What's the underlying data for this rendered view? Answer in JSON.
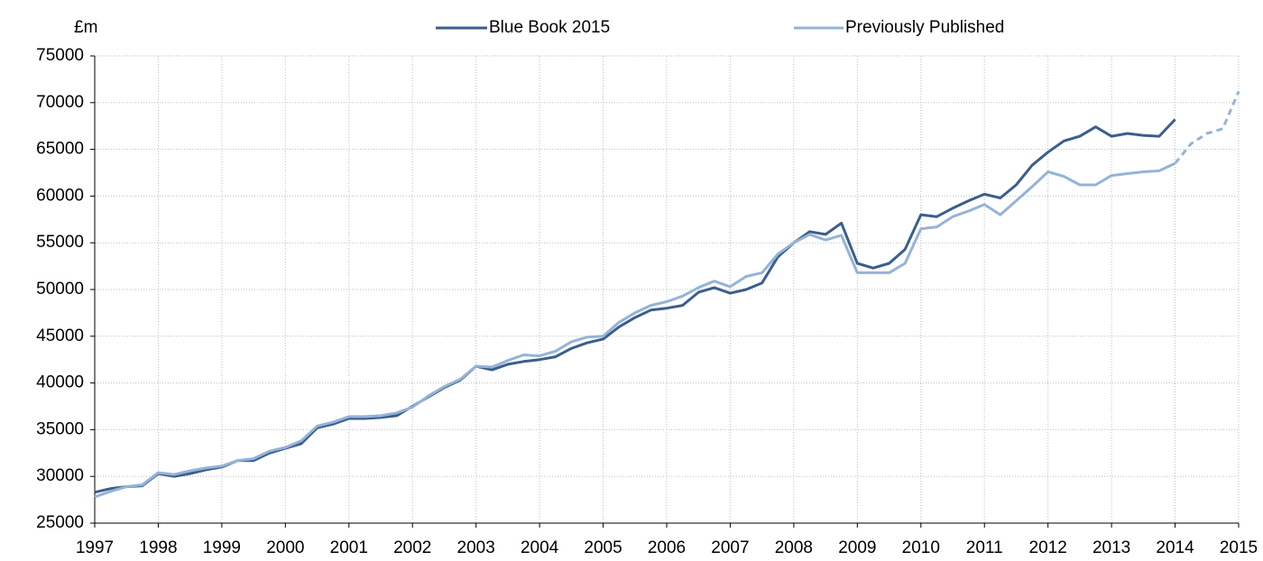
{
  "chart_data": {
    "type": "line",
    "y_unit_label": "£m",
    "x": [
      1997,
      1997.25,
      1997.5,
      1997.75,
      1998,
      1998.25,
      1998.5,
      1998.75,
      1999,
      1999.25,
      1999.5,
      1999.75,
      2000,
      2000.25,
      2000.5,
      2000.75,
      2001,
      2001.25,
      2001.5,
      2001.75,
      2002,
      2002.25,
      2002.5,
      2002.75,
      2003,
      2003.25,
      2003.5,
      2003.75,
      2004,
      2004.25,
      2004.5,
      2004.75,
      2005,
      2005.25,
      2005.5,
      2005.75,
      2006,
      2006.25,
      2006.5,
      2006.75,
      2007,
      2007.25,
      2007.5,
      2007.75,
      2008,
      2008.25,
      2008.5,
      2008.75,
      2009,
      2009.25,
      2009.5,
      2009.75,
      2010,
      2010.25,
      2010.5,
      2010.75,
      2011,
      2011.25,
      2011.5,
      2011.75,
      2012,
      2012.25,
      2012.5,
      2012.75,
      2013,
      2013.25,
      2013.5,
      2013.75,
      2014,
      2014.25,
      2014.5,
      2014.75,
      2015
    ],
    "series": [
      {
        "name": "Blue Book 2015",
        "color": "#3b5e8c",
        "values": [
          28300,
          28700,
          28900,
          29000,
          30300,
          30000,
          30300,
          30700,
          31000,
          31700,
          31700,
          32500,
          33000,
          33500,
          35200,
          35600,
          36200,
          36200,
          36300,
          36500,
          37500,
          38500,
          39500,
          40300,
          41800,
          41400,
          42000,
          42300,
          42500,
          42800,
          43700,
          44300,
          44700,
          46000,
          47000,
          47800,
          48000,
          48300,
          49700,
          50200,
          49600,
          50000,
          50700,
          53500,
          55000,
          56200,
          55900,
          57100,
          52800,
          52300,
          52800,
          54300,
          58000,
          57800,
          58700,
          59500,
          60200,
          59800,
          61200,
          63300,
          64700,
          65900,
          66400,
          67400,
          66400,
          66700,
          66500,
          66400,
          68200,
          null,
          null,
          null,
          null
        ]
      },
      {
        "name": "Previously Published",
        "color": "#95b3d7",
        "values": [
          27800,
          28400,
          28900,
          29100,
          30400,
          30200,
          30600,
          30900,
          31100,
          31700,
          31900,
          32700,
          33100,
          33800,
          35400,
          35800,
          36400,
          36400,
          36500,
          36800,
          37400,
          38600,
          39600,
          40400,
          41800,
          41700,
          42400,
          43000,
          42900,
          43400,
          44400,
          44900,
          45000,
          46500,
          47500,
          48300,
          48700,
          49300,
          50200,
          50900,
          50300,
          51400,
          51800,
          53800,
          55000,
          55900,
          55300,
          55800,
          51800,
          51800,
          51800,
          52800,
          56500,
          56700,
          57800,
          58400,
          59100,
          58000,
          59500,
          61000,
          62600,
          62100,
          61200,
          61200,
          62200,
          62400,
          62600,
          62700,
          63500,
          null,
          null,
          null,
          null
        ]
      },
      {
        "color": "#95b3d7",
        "dashed": true,
        "values": [
          null,
          null,
          null,
          null,
          null,
          null,
          null,
          null,
          null,
          null,
          null,
          null,
          null,
          null,
          null,
          null,
          null,
          null,
          null,
          null,
          null,
          null,
          null,
          null,
          null,
          null,
          null,
          null,
          null,
          null,
          null,
          null,
          null,
          null,
          null,
          null,
          null,
          null,
          null,
          null,
          null,
          null,
          null,
          null,
          null,
          null,
          null,
          null,
          null,
          null,
          null,
          null,
          null,
          null,
          null,
          null,
          null,
          null,
          null,
          null,
          null,
          null,
          null,
          null,
          null,
          null,
          null,
          null,
          63500,
          65600,
          66700,
          67200,
          71200
        ]
      }
    ],
    "xlim": [
      1997,
      2015
    ],
    "xticks": [
      1997,
      1998,
      1999,
      2000,
      2001,
      2002,
      2003,
      2004,
      2005,
      2006,
      2007,
      2008,
      2009,
      2010,
      2011,
      2012,
      2013,
      2014,
      2015
    ],
    "ylim": [
      25000,
      75000
    ],
    "yticks": [
      25000,
      30000,
      35000,
      40000,
      45000,
      50000,
      55000,
      60000,
      65000,
      70000,
      75000
    ],
    "grid": true,
    "legend": "top"
  }
}
